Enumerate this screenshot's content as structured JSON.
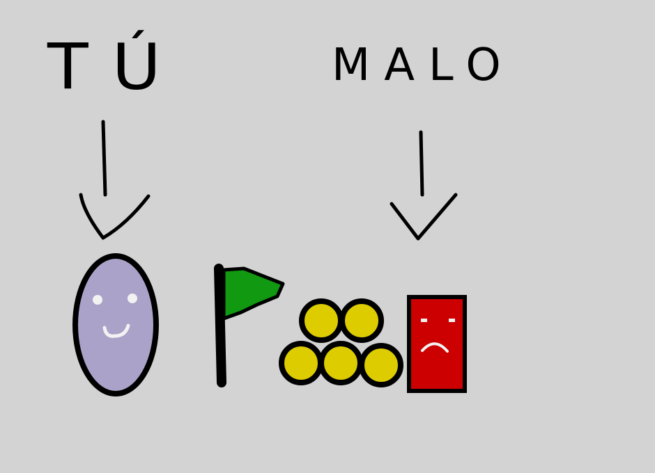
{
  "labels": {
    "player": "TÚ",
    "enemy": "MALO"
  },
  "colors": {
    "background": "#d3d3d3",
    "player_fill": "#aaa2c8",
    "flag_fill": "#119911",
    "coin_fill": "#ddcc00",
    "enemy_fill": "#cc0000",
    "outline": "#000000",
    "face": "#f2f2f2"
  },
  "icons": {
    "player": "smiling-oval-icon",
    "flag": "flag-icon",
    "coins": "coin-pile-icon",
    "enemy": "sad-block-icon"
  }
}
